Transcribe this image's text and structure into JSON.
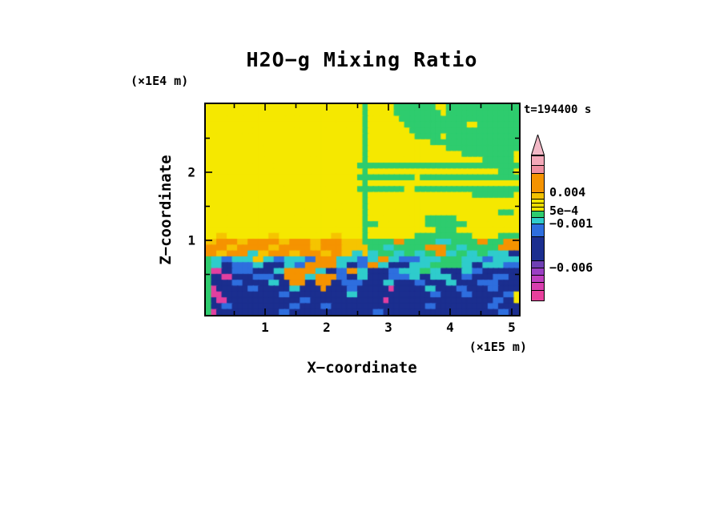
{
  "title": "H2O−g Mixing Ratio",
  "time_label": "t=194400 s",
  "axes": {
    "x": {
      "label": "X−coordinate",
      "unit": "(×1E5 m)",
      "tick_labels": [
        "1",
        "2",
        "3",
        "4",
        "5"
      ]
    },
    "y": {
      "label": "Z−coordinate",
      "unit": "(×1E4 m)",
      "tick_labels": [
        "2",
        "1"
      ]
    }
  },
  "colorbar": {
    "tip_color": "#f2b8c6",
    "segments": [
      {
        "color": "#f3a8b8",
        "h": 12
      },
      {
        "color": "#ee8fa0",
        "h": 10
      },
      {
        "color": "#f59300",
        "h": 24
      },
      {
        "color": "#f2c100",
        "h": 8
      },
      {
        "color": "#f2e500",
        "h": 5
      },
      {
        "color": "#ebdc00",
        "h": 5
      },
      {
        "color": "#f2e500",
        "h": 5
      },
      {
        "color": "#2ecc6e",
        "h": 8
      },
      {
        "color": "#2fcccc",
        "h": 8
      },
      {
        "color": "#2e6ede",
        "h": 16
      },
      {
        "color": "#1b2e8f",
        "h": 30
      },
      {
        "color": "#6f3fb4",
        "h": 9
      },
      {
        "color": "#9b3fc4",
        "h": 9
      },
      {
        "color": "#c03fc0",
        "h": 9
      },
      {
        "color": "#d93fae",
        "h": 10
      },
      {
        "color": "#e8409c",
        "h": 14
      }
    ],
    "labels": [
      {
        "text": "0.004",
        "boundary": 2
      },
      {
        "text": "5e−4",
        "boundary": 6
      },
      {
        "text": "−0.001",
        "boundary": 8
      },
      {
        "text": "−0.006",
        "boundary": 11
      }
    ]
  },
  "chart_data": {
    "type": "heatmap",
    "title": "H2O−g Mixing Ratio",
    "xlabel": "X−coordinate (×1E5 m)",
    "ylabel": "Z−coordinate (×1E4 m)",
    "time": "t=194400 s",
    "x_range": [
      0,
      5.15
    ],
    "z_range": [
      -0.1,
      3.0
    ],
    "labeled_levels": [
      "0.004",
      "5e−4",
      "−0.001",
      "−0.006"
    ],
    "palette": {
      "Y": "#f5e800",
      "o": "#f5c400",
      "O": "#f59300",
      "g": "#2ecc6e",
      "C": "#2fcccc",
      "B": "#2e6ede",
      "N": "#1b2e8f",
      "P": "#e23fa0",
      "V": "#9b3fc4"
    },
    "value_ranges": {
      "O": "0.004 … 0.006",
      "o": "0.002 … 0.004",
      "Y": "5e−4 … 0.002",
      "g": "0 … 5e−4",
      "C": "−0.001 … 0",
      "B": "−0.003 … −0.001",
      "N": "−0.006 … −0.003",
      "V": "−0.007 … −0.006",
      "P": "< −0.007"
    },
    "grid": {
      "cols": 60,
      "rows": 36
    },
    "rows": [
      "YYYYYYYYYYYYYYYYYYYYYYYYYYYYYYgYYYYYggggggggYYgggggggggggggg",
      "YYYYYYYYYYYYYYYYYYYYYYYYYYYYYYgYYYYYgggggggggYgggggggggggggg",
      "YYYYYYYYYYYYYYYYYYYYYYYYYYYYYYgYYYYYYggggggggggggggggggggggg",
      "YYYYYYYYYYYYYYYYYYYYYYYYYYYYYYgYYYYYYYggggggggggggYYgggggggg",
      "YYYYYYYYYYYYYYYYYYYYYYYYYYYYYYgYYYYYYYYggggggggggggggggggggg",
      "YYYYYYYYYYYYYYYYYYYYYYYYYYYYYYgYYYYYYYYYgggggYgggggggggggggg",
      "YYYYYYYYYYYYYYYYYYYYYYYYYYYYYYgYYYYYYYYYYYYgggggggggggggggggg",
      "YYYYYYYYYYYYYYYYYYYYYYYYYYYYYYgYYYYYYYYYYYYYYYgggggggggggggg",
      "YYYYYYYYYYYYYYYYYYYYYYYYYYYYYYgYYYYYYYYYYYYYYYYYYgggggggggg",
      "YYYYYYYYYYYYYYYYYYYYYYYYYYYYYYgYYYYYYYYYYYYYYYYYYYYYYgggggg",
      "YYYYYYYYYYYYYYYYYYYYYYYYYYYYYggggggggggggggggggggggggggggggg",
      "YYYYYYYYYYYYYYYYYYYYYYYYYYYYYYgYYYYYYYYYYYYYYYYYYYYYYYYYggg",
      "YYYYYYYYYYYYYYYYYYYYYYYYYYYYYgggggggggggYggggggggggggggggggg",
      "YYYYYYYYYYYYYYYYYYYYYYYYYYYYYYgYYYYYYYYYYYYYYYYYYYYYYYYYYYY",
      "YYYYYYYYYYYYYYYYYYYYYYYYYYYYYgggggggggYYgggggggggggggggggggg",
      "YYYYYYYYYYYYYYYYYYYYYYYYYYYYYYgYYYYYYYYYYYYYYYYYYYYgggggggg",
      "YYYYYYYYYYYYYYYYYYYYYYYYYYYYYYgYYYYYYYYYYYYYYYYYYYYYYYYYYYY",
      "YYYYYYYYYYYYYYYYYYYYYYYYYYYYYYgYYYYYYYYYYYYYYYYYYYYYYYYYYYY",
      "YYYYYYYYYYYYYYYYYYYYYYYYYYYYYYgYYYYYYYYYYYYYYYYYYYYYYYYYggg",
      "YYYYYYYYYYYYYYYYYYYYYYYYYYYYYYgYYYYYYYYYYYggggggYYYYYYYYYYY",
      "YYYYYYYYYYYYYYYYYYYYYYYYYYYYYYgggYYYYYYYYYggggggggYYYYYYYYYY",
      "YYYYYYYYYYYYYYYYYYYYYYYYYYYYYYgYYYYYYYYYYYYYggggYYYYYYYYYYY",
      "YYooYYYYYYYYooYYYYYYYYYYooYYYYgYYYYYYYYYgggggggggggYYYYYgggg",
      "ooOOOOooOOOOOOooOOOOooOOOOooooggggggOOggggggCCCgggggOOgggOOO",
      "OOOOooOOOOOOooOOOOOOooOOOOooooogggCCggggggOOOOggCCggggggOOOO",
      "OOooOOOOCCooOOOOooOOOOooOOooCCoCCgggCCggCCggOOCCggCCggCCCCNN",
      "gCCBBCCCCooCCBBCCCCBBOOOOCCCCBBCCOOCCBBBBCCCCggggCCCCBBCCCCC",
      "gCCNNBBBBCCNNNNCCBBOOOOOOCCNNBBOOCCNNNNCCCCggggggCCNNCCCCBBB",
      "gPPNNBBBBNNNNCCOOOOOOCCNNBBOOCCNNNNBBCCCCggCCNNNNCCBBNNNNNNN",
      "gNNPPNNNNBBBBNNOOOOCCOOOOBBNNCCNNNNBBBBCCNNCCCCNNBBNNNNBBBNN",
      "gNNNNBBNNNNNCCNNOOONNOOONNBBBBNNNNCCNNNNBBNNNNCCNNNNBBBBNNNN",
      "gPNNNNNNBBNNNNNNCCNNNNONNNNBBNNNNNNPNNNNNNCCNNNNBBNNNNBBNNNN",
      "gPPNNNNNNNNNNNBBNNNNNNNNNNNCCNNNNNNNNNNNNNNBBNNNNBBNNNNNNBB",
      "gNPPNNNNNNNNNNNNNNBBNNNNNNNNNNNNNNPNNNNNNNNNNNNNNNNNNNNBBNN",
      "gNNBBNNNNNNNNNNNBBNNNNBBNNNNNNNNNNNNNNNNNNBBNNNNNNNNNNBBNNNN",
      "gPNNNNNNNNNNNNBBNNNNNNNNNNNNNNNNBBNNNNNNNNNNNNNNNNNNNNNNBBNN",
      "gPNNNNNNNNNNNNBBNNNNNNNNNNNNNNNNBBNNNNNNNNNNNNNNNNNNNNNNBBNN"
    ]
  }
}
